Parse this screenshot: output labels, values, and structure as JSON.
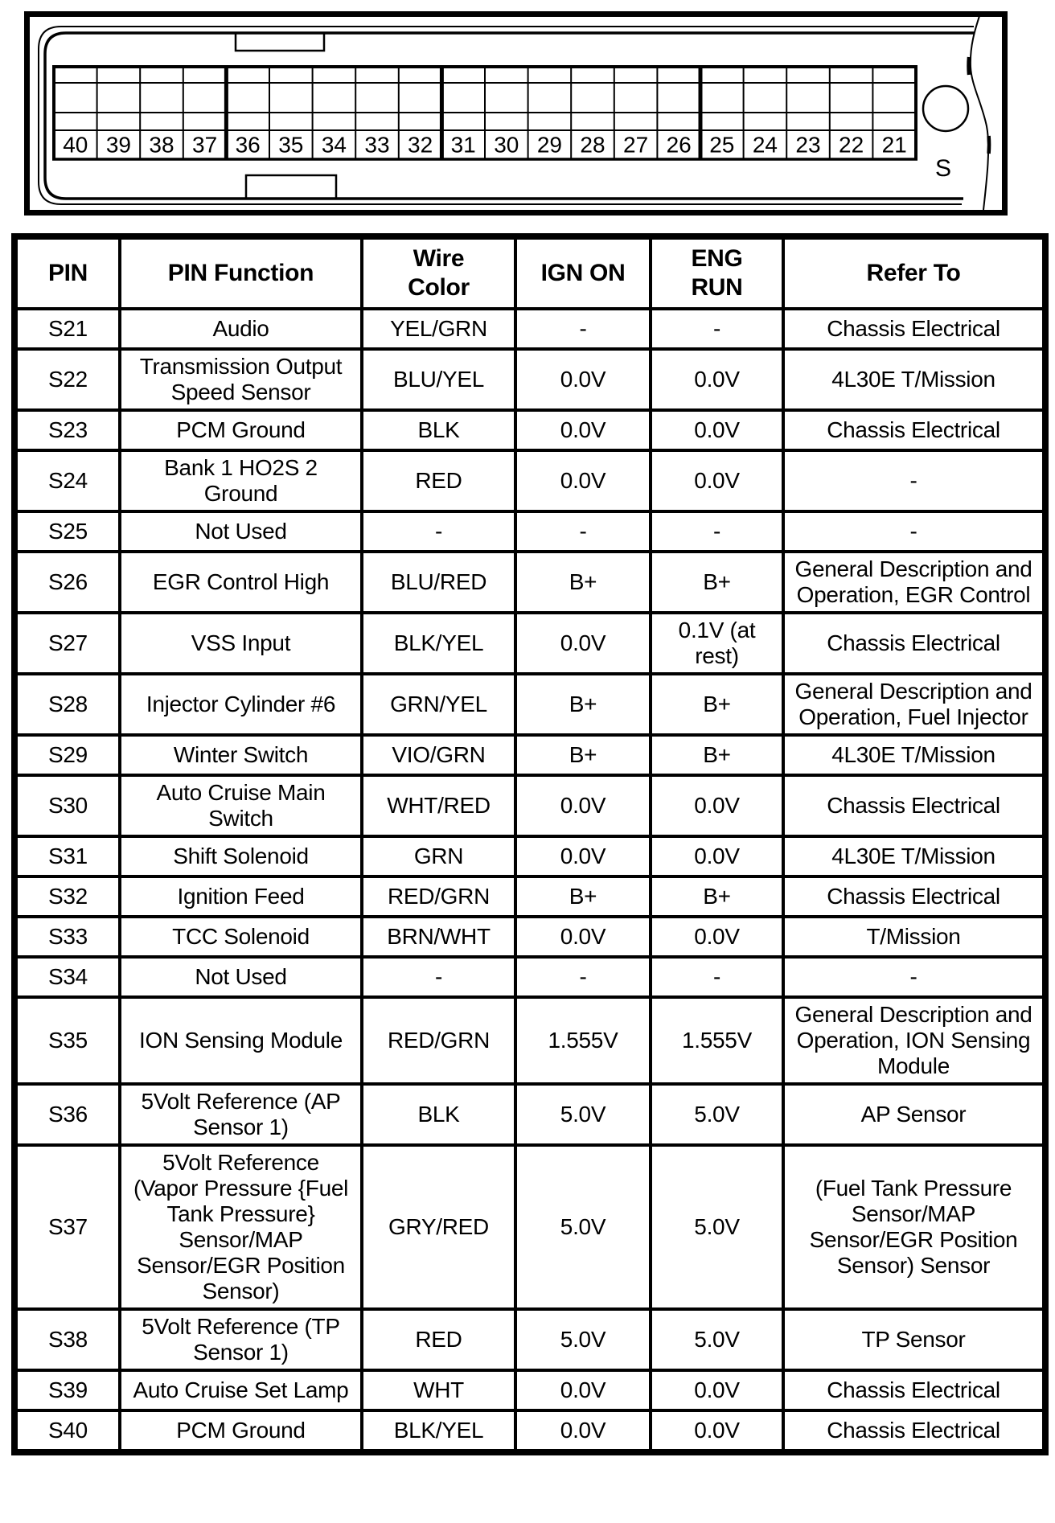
{
  "colors": {
    "ink": "#000000",
    "paper": "#ffffff"
  },
  "connector": {
    "connector_label": "S",
    "pin_numbers": [
      "40",
      "39",
      "38",
      "37",
      "36",
      "35",
      "34",
      "33",
      "32",
      "31",
      "30",
      "29",
      "28",
      "27",
      "26",
      "25",
      "24",
      "23",
      "22",
      "21"
    ]
  },
  "table": {
    "headers": [
      "PIN",
      "PIN Function",
      "Wire\nColor",
      "IGN ON",
      "ENG\nRUN",
      "Refer To"
    ],
    "rows": [
      {
        "pin": "S21",
        "function": "Audio",
        "wire_color": "YEL/GRN",
        "ign_on": "-",
        "eng_run": "-",
        "refer_to": "Chassis Electrical"
      },
      {
        "pin": "S22",
        "function": "Transmission Output Speed Sensor",
        "wire_color": "BLU/YEL",
        "ign_on": "0.0V",
        "eng_run": "0.0V",
        "refer_to": "4L30E T/Mission"
      },
      {
        "pin": "S23",
        "function": "PCM Ground",
        "wire_color": "BLK",
        "ign_on": "0.0V",
        "eng_run": "0.0V",
        "refer_to": "Chassis Electrical"
      },
      {
        "pin": "S24",
        "function": "Bank 1 HO2S 2 Ground",
        "wire_color": "RED",
        "ign_on": "0.0V",
        "eng_run": "0.0V",
        "refer_to": "-"
      },
      {
        "pin": "S25",
        "function": "Not Used",
        "wire_color": "-",
        "ign_on": "-",
        "eng_run": "-",
        "refer_to": "-"
      },
      {
        "pin": "S26",
        "function": "EGR Control High",
        "wire_color": "BLU/RED",
        "ign_on": "B+",
        "eng_run": "B+",
        "refer_to": "General Description and Operation, EGR Control"
      },
      {
        "pin": "S27",
        "function": "VSS Input",
        "wire_color": "BLK/YEL",
        "ign_on": "0.0V",
        "eng_run": "0.1V (at rest)",
        "refer_to": "Chassis Electrical"
      },
      {
        "pin": "S28",
        "function": "Injector Cylinder #6",
        "wire_color": "GRN/YEL",
        "ign_on": "B+",
        "eng_run": "B+",
        "refer_to": "General Description and Operation, Fuel Injector"
      },
      {
        "pin": "S29",
        "function": "Winter Switch",
        "wire_color": "VIO/GRN",
        "ign_on": "B+",
        "eng_run": "B+",
        "refer_to": "4L30E T/Mission"
      },
      {
        "pin": "S30",
        "function": "Auto Cruise Main Switch",
        "wire_color": "WHT/RED",
        "ign_on": "0.0V",
        "eng_run": "0.0V",
        "refer_to": "Chassis Electrical"
      },
      {
        "pin": "S31",
        "function": "Shift Solenoid",
        "wire_color": "GRN",
        "ign_on": "0.0V",
        "eng_run": "0.0V",
        "refer_to": "4L30E T/Mission"
      },
      {
        "pin": "S32",
        "function": "Ignition Feed",
        "wire_color": "RED/GRN",
        "ign_on": "B+",
        "eng_run": "B+",
        "refer_to": "Chassis Electrical"
      },
      {
        "pin": "S33",
        "function": "TCC Solenoid",
        "wire_color": "BRN/WHT",
        "ign_on": "0.0V",
        "eng_run": "0.0V",
        "refer_to": "T/Mission"
      },
      {
        "pin": "S34",
        "function": "Not Used",
        "wire_color": "-",
        "ign_on": "-",
        "eng_run": "-",
        "refer_to": "-"
      },
      {
        "pin": "S35",
        "function": "ION Sensing Module",
        "wire_color": "RED/GRN",
        "ign_on": "1.555V",
        "eng_run": "1.555V",
        "refer_to": "General Description and Operation, ION Sensing Module"
      },
      {
        "pin": "S36",
        "function": "5Volt Reference (AP Sensor 1)",
        "wire_color": "BLK",
        "ign_on": "5.0V",
        "eng_run": "5.0V",
        "refer_to": "AP Sensor"
      },
      {
        "pin": "S37",
        "function": "5Volt Reference (Vapor Pressure {Fuel Tank Pressure} Sensor/MAP Sensor/EGR Position Sensor)",
        "wire_color": "GRY/RED",
        "ign_on": "5.0V",
        "eng_run": "5.0V",
        "refer_to": "(Fuel Tank Pressure Sensor/MAP Sensor/EGR Position Sensor) Sensor"
      },
      {
        "pin": "S38",
        "function": "5Volt Reference (TP Sensor 1)",
        "wire_color": "RED",
        "ign_on": "5.0V",
        "eng_run": "5.0V",
        "refer_to": "TP Sensor"
      },
      {
        "pin": "S39",
        "function": "Auto Cruise Set Lamp",
        "wire_color": "WHT",
        "ign_on": "0.0V",
        "eng_run": "0.0V",
        "refer_to": "Chassis Electrical"
      },
      {
        "pin": "S40",
        "function": "PCM Ground",
        "wire_color": "BLK/YEL",
        "ign_on": "0.0V",
        "eng_run": "0.0V",
        "refer_to": "Chassis Electrical"
      }
    ]
  }
}
